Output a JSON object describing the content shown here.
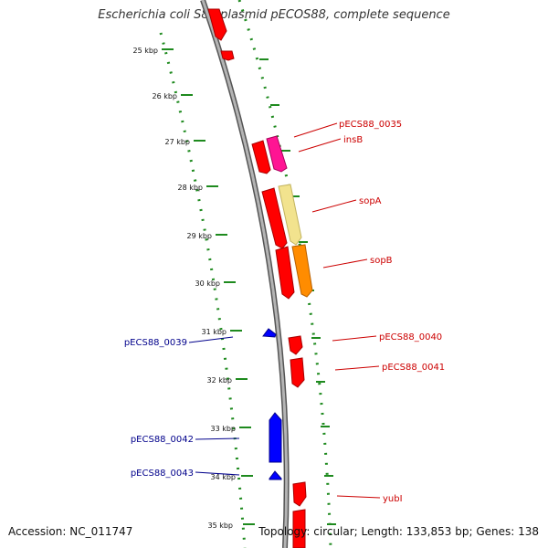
{
  "title": "Escherichia coli S88 plasmid pECOS88, complete sequence",
  "footer": {
    "accession": "Accession: NC_011747",
    "topology": "Topology: circular; Length: 133,853 bp; Genes: 138"
  },
  "colors": {
    "backbone": "#8a8a8a",
    "tick": "#1e8a1e",
    "gene_forward": "#ff0000",
    "gene_reverse": "#0000ff",
    "label_forward": "#cc0000",
    "label_reverse": "#00008b",
    "insB": "#ff1493",
    "sopA": "#f2e38e",
    "sopB": "#ff8c00"
  },
  "scale": {
    "labels": [
      "25 kbp",
      "26 kbp",
      "27 kbp",
      "28 kbp",
      "29 kbp",
      "30 kbp",
      "31 kbp",
      "32 kbp",
      "33 kbp",
      "34 kbp",
      "35 kbp"
    ]
  },
  "genes": {
    "forward": [
      "pECS88_0035",
      "insB",
      "sopA",
      "sopB",
      "pECS88_0040",
      "pECS88_0041",
      "yubI"
    ],
    "reverse": [
      "pECS88_0039",
      "pECS88_0042",
      "pECS88_0043"
    ]
  }
}
